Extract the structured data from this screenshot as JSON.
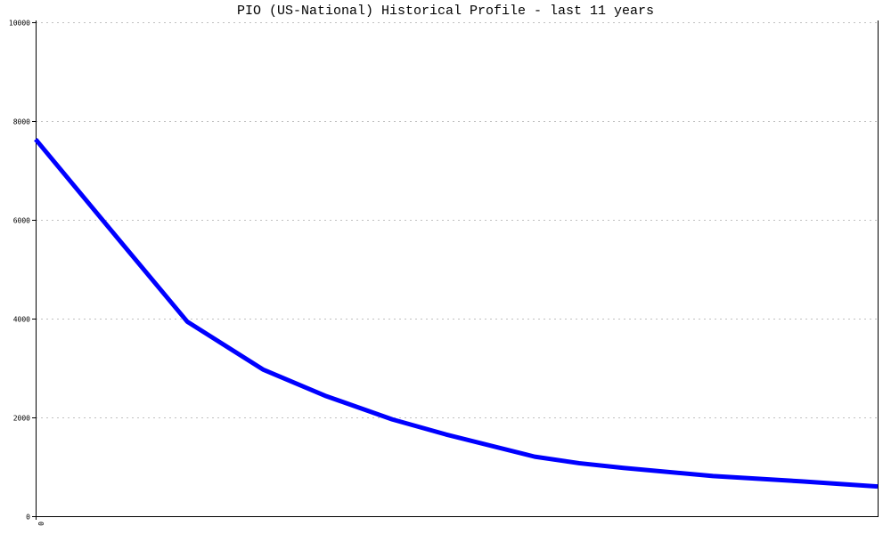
{
  "chart_data": {
    "type": "line",
    "title": "PIO (US-National) Historical Profile - last 11 years",
    "xlabel": "",
    "ylabel": "",
    "x_tick_labels": [
      "0"
    ],
    "y_ticks": [
      0,
      2000,
      4000,
      6000,
      8000,
      10000
    ],
    "ylim": [
      0,
      10000
    ],
    "xlim": [
      0,
      11
    ],
    "grid": "horizontal dotted",
    "series": [
      {
        "color": "#0000ff",
        "x": [
          0,
          0.99,
          1.98,
          2.97,
          3.78,
          4.66,
          5.36,
          6.52,
          7.1,
          7.68,
          8.85,
          10.01,
          11
        ],
        "y": [
          7630,
          5780,
          3940,
          2970,
          2440,
          1960,
          1655,
          1205,
          1073,
          977,
          813,
          705,
          602
        ]
      }
    ]
  }
}
